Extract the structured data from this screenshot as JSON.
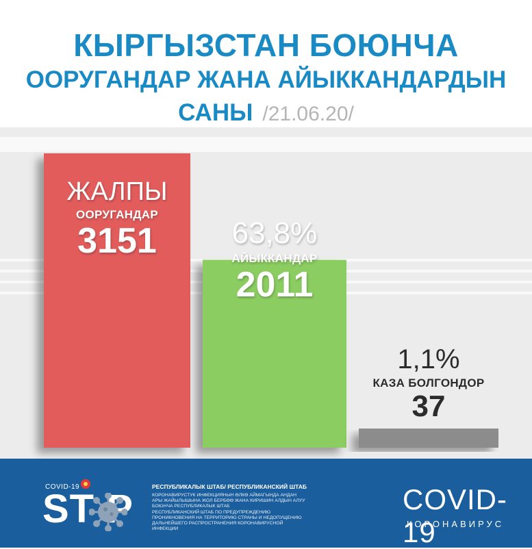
{
  "header": {
    "title_line1": "КЫРГЫЗСТАН БОЮНЧА",
    "title_line2": "ООРУГАНДАР ЖАНА АЙЫККАНДАРДЫН",
    "title_line3": "САНЫ",
    "date": "/21.06.20/"
  },
  "colors": {
    "title": "#1a8ac4",
    "total_bar": "#e25b5b",
    "recovered_bar": "#8ccd62",
    "deaths_bar": "#8c8c8c",
    "footer": "#1b5e9d"
  },
  "chart_data": {
    "type": "bar",
    "categories": [
      "ЖАЛПЫ ООРУГАНДАР",
      "АЙЫККАНДАР",
      "КАЗА БОЛГОНДОР"
    ],
    "values": [
      3151,
      2011,
      37
    ],
    "total": {
      "label_top": "ЖАЛПЫ",
      "label_sub": "ООРУГАНДАР",
      "value": "3151"
    },
    "recovered": {
      "percent": "63,8%",
      "label": "АЙЫККАНДАР",
      "value": "2011"
    },
    "deaths": {
      "percent": "1,1%",
      "label": "КАЗА БОЛГОНДОР",
      "value": "37"
    }
  },
  "footer": {
    "covid_small": "COVID-19",
    "stop": "ST P",
    "hq_title": "РЕСПУБЛИКАЛЫК ШТАБ/ РЕСПУБЛИКАНСКИЙ ШТАБ",
    "hq_text_ky": "КОРОНАВИРУСТУК ИНФЕКЦИЯНЫН ӨЛКӨ АЙМАГЫНДА АНДАН АРЫ ЖАЙЫЛЫШЫНА ЖОЛ БЕРБӨӨ ЖАНА КИРИШИН АЛДЫН АЛУУ БОЮНЧА РЕСПУБЛИКАЛЫК ШТАБ",
    "hq_text_ru": "РЕСПУБЛИКАНСКИЙ ШТАБ ПО ПРЕДУПРЕЖДЕНИЮ ПРОНИКНОВЕНИЯ НА ТЕРРИТОРИЮ СТРАНЫ И НЕДОПУЩЕНИЮ ДАЛЬНЕЙШЕГО РАСПРОСТРАНЕНИЯ КОРОНАВИРУСНОЙ ИНФЕКЦИИ",
    "covid_big": "COVID-19",
    "covid_sub": "КОРОНАВИРУС"
  }
}
